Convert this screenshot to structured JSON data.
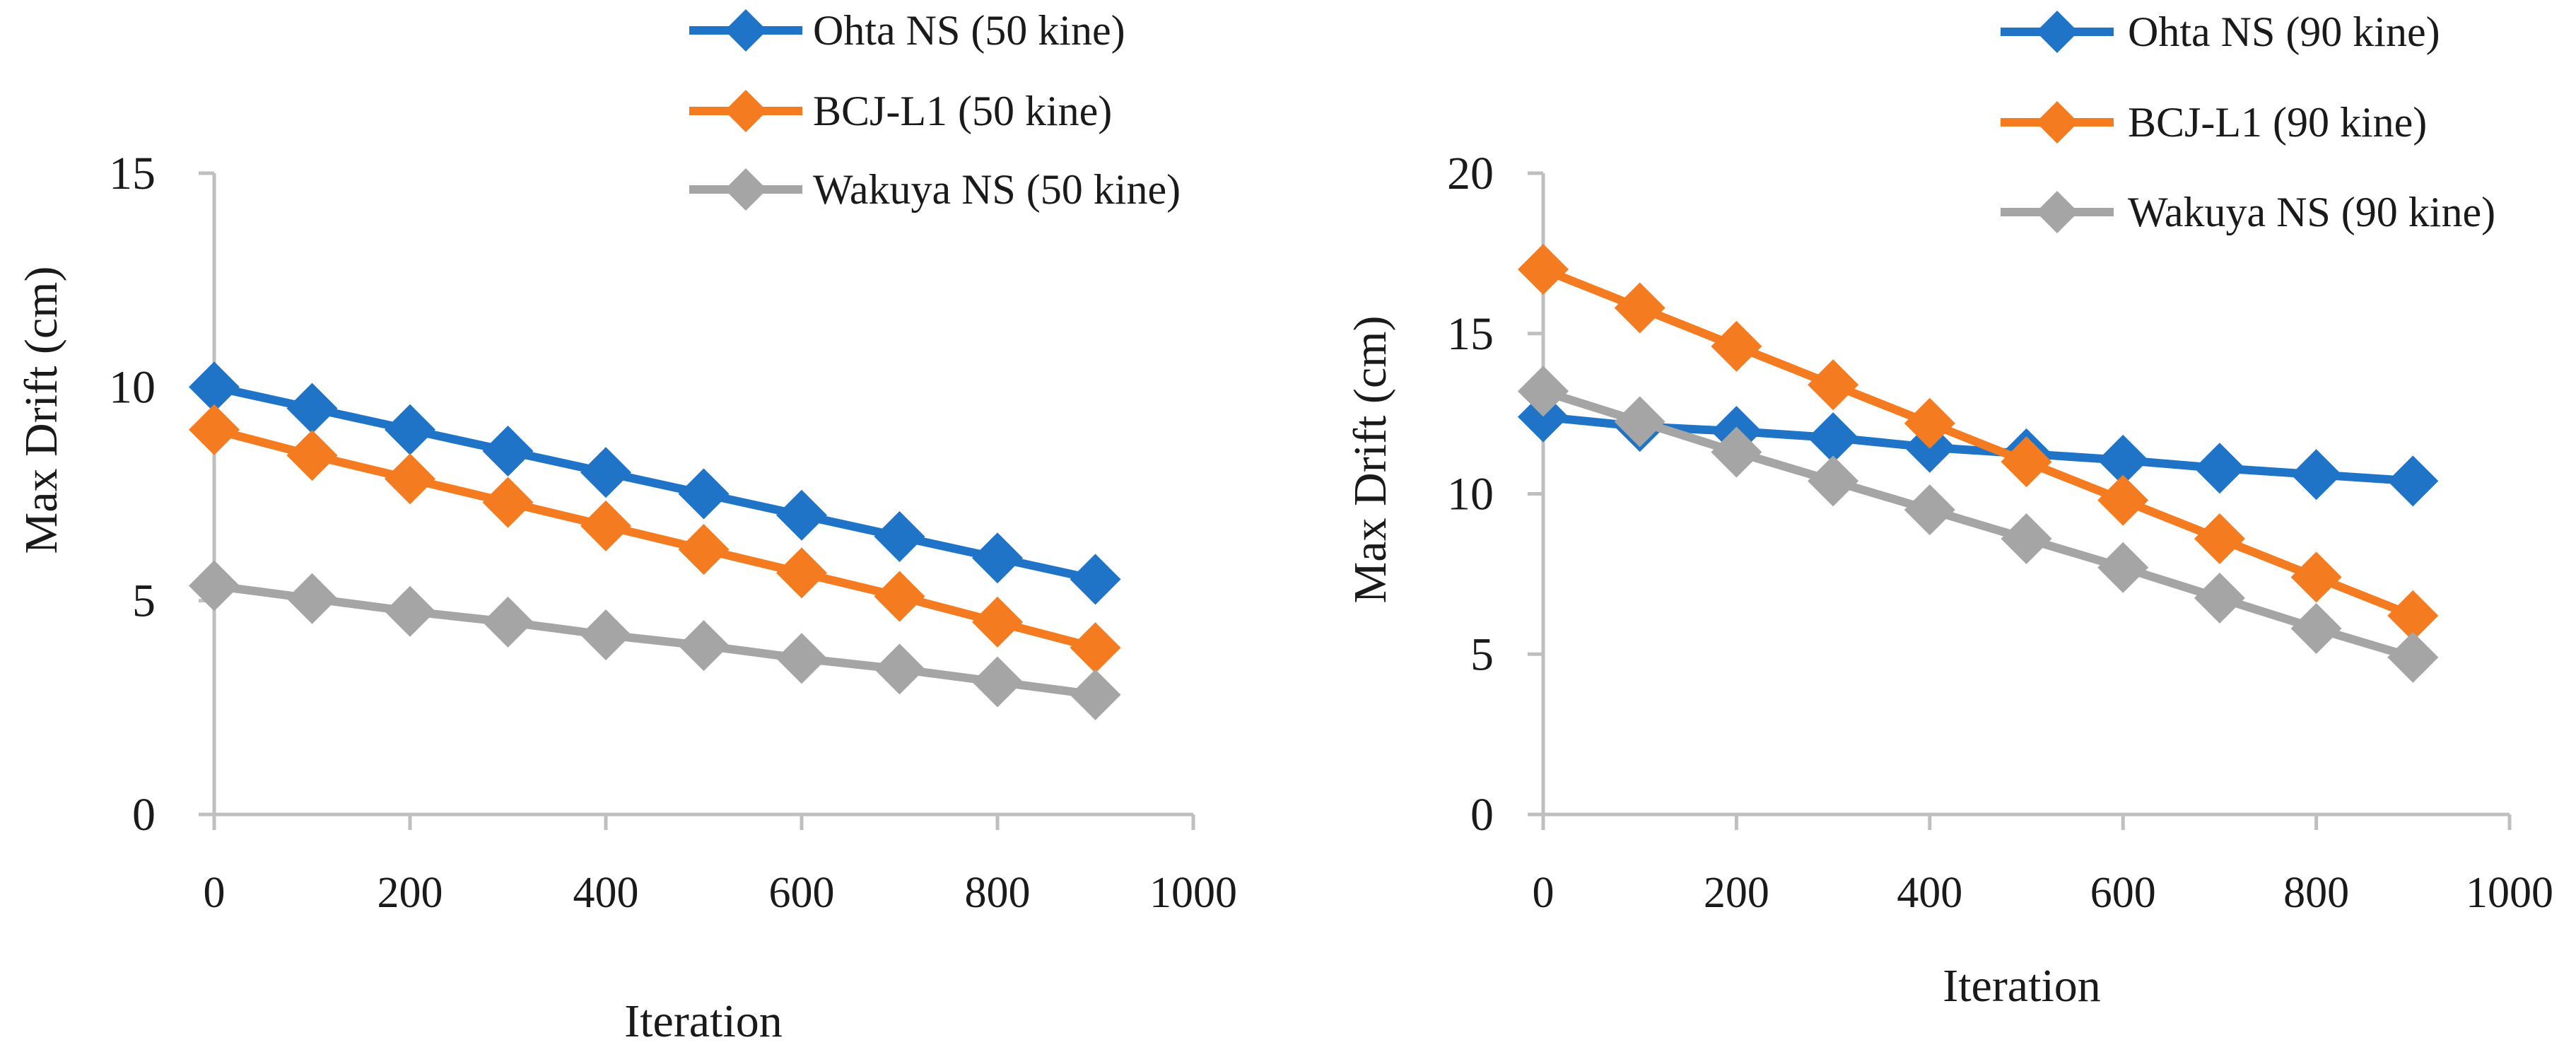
{
  "chart_data": [
    {
      "type": "line",
      "xlabel": "Iteration",
      "ylabel": "Max Drift (cm)",
      "xlim": [
        0,
        1000
      ],
      "ylim": [
        0,
        15
      ],
      "xticks": [
        "0",
        "200",
        "400",
        "600",
        "800",
        "1000"
      ],
      "yticks": [
        "0",
        "5",
        "10",
        "15"
      ],
      "legend_position": "top-right",
      "x": [
        0,
        100,
        200,
        300,
        400,
        500,
        600,
        700,
        800,
        900
      ],
      "series": [
        {
          "name": "Ohta NS (50 kine)",
          "color": "#1f74c8",
          "values": [
            10.0,
            9.5,
            9.0,
            8.5,
            8.0,
            7.5,
            7.0,
            6.5,
            6.0,
            5.5
          ]
        },
        {
          "name": "BCJ-L1 (50 kine)",
          "color": "#f47b20",
          "values": [
            9.0,
            8.4,
            7.85,
            7.3,
            6.75,
            6.2,
            5.65,
            5.1,
            4.5,
            3.9
          ]
        },
        {
          "name": "Wakuya NS (50 kine)",
          "color": "#a5a5a5",
          "values": [
            5.35,
            5.05,
            4.75,
            4.5,
            4.2,
            3.95,
            3.65,
            3.4,
            3.1,
            2.8
          ]
        }
      ]
    },
    {
      "type": "line",
      "xlabel": "Iteration",
      "ylabel": "Max Drift (cm)",
      "xlim": [
        0,
        1000
      ],
      "ylim": [
        0,
        20
      ],
      "xticks": [
        "0",
        "200",
        "400",
        "600",
        "800",
        "1000"
      ],
      "yticks": [
        "0",
        "5",
        "10",
        "15",
        "20"
      ],
      "legend_position": "top-right",
      "x": [
        0,
        100,
        200,
        300,
        400,
        500,
        600,
        700,
        800,
        900
      ],
      "series": [
        {
          "name": "Ohta NS (90 kine)",
          "color": "#1f74c8",
          "values": [
            12.4,
            12.1,
            11.95,
            11.75,
            11.45,
            11.25,
            11.05,
            10.8,
            10.6,
            10.4
          ]
        },
        {
          "name": "BCJ-L1 (90 kine)",
          "color": "#f47b20",
          "values": [
            17.0,
            15.8,
            14.6,
            13.4,
            12.2,
            11.0,
            9.8,
            8.6,
            7.4,
            6.2
          ]
        },
        {
          "name": "Wakuya NS (90 kine)",
          "color": "#a5a5a5",
          "values": [
            13.2,
            12.25,
            11.3,
            10.4,
            9.5,
            8.6,
            7.7,
            6.75,
            5.8,
            4.9
          ]
        }
      ]
    }
  ]
}
